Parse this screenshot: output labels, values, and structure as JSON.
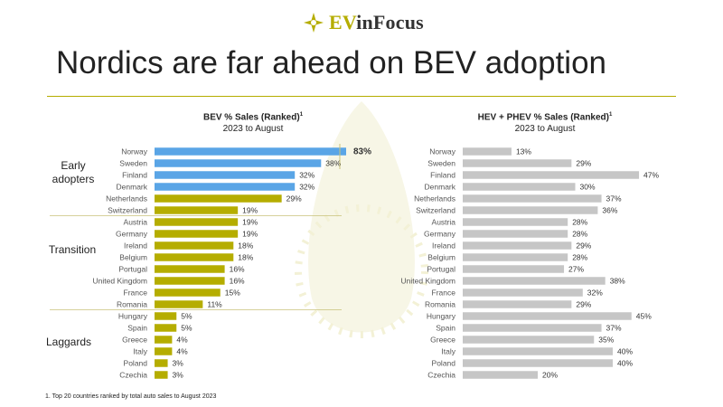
{
  "logo": {
    "ev": "EV",
    "rest": "inFocus"
  },
  "title": "Nordics are far ahead on BEV adoption",
  "footnote": "1. Top 20 countries ranked by total auto sales to August 2023",
  "groups": {
    "early": [
      "Early",
      "adopters"
    ],
    "transition": "Transition",
    "laggards": "Laggards"
  },
  "colors": {
    "accent": "#b5ad00",
    "nordic_blue": "#5aa5e6",
    "gray": "#c6c6c6",
    "rule": "#b5ad00"
  },
  "chart_data": [
    {
      "type": "bar",
      "orientation": "horizontal",
      "title": "BEV % Sales (Ranked)",
      "title_sup": "1",
      "subtitle": "2023 to August",
      "categories": [
        "Norway",
        "Sweden",
        "Finland",
        "Denmark",
        "Netherlands",
        "Switzerland",
        "Austria",
        "Germany",
        "Ireland",
        "Belgium",
        "Portugal",
        "United Kingdom",
        "France",
        "Romania",
        "Hungary",
        "Spain",
        "Greece",
        "Italy",
        "Poland",
        "Czechia"
      ],
      "values": [
        83,
        38,
        32,
        32,
        29,
        19,
        19,
        19,
        18,
        18,
        16,
        16,
        15,
        11,
        5,
        5,
        4,
        4,
        3,
        3
      ],
      "value_labels": [
        "83%",
        "38%",
        "32%",
        "32%",
        "29%",
        "19%",
        "19%",
        "19%",
        "18%",
        "18%",
        "16%",
        "16%",
        "15%",
        "11%",
        "5%",
        "5%",
        "4%",
        "4%",
        "3%",
        "3%"
      ],
      "colors": [
        "#5aa5e6",
        "#5aa5e6",
        "#5aa5e6",
        "#5aa5e6",
        "#b5ad00",
        "#b5ad00",
        "#b5ad00",
        "#b5ad00",
        "#b5ad00",
        "#b5ad00",
        "#b5ad00",
        "#b5ad00",
        "#b5ad00",
        "#b5ad00",
        "#b5ad00",
        "#b5ad00",
        "#b5ad00",
        "#b5ad00",
        "#b5ad00",
        "#b5ad00"
      ],
      "axis_break": true
    },
    {
      "type": "bar",
      "orientation": "horizontal",
      "title": "HEV + PHEV % Sales (Ranked)",
      "title_sup": "1",
      "subtitle": "2023 to August",
      "categories": [
        "Norway",
        "Sweden",
        "Finland",
        "Denmark",
        "Netherlands",
        "Switzerland",
        "Austria",
        "Germany",
        "Ireland",
        "Belgium",
        "Portugal",
        "United Kingdom",
        "France",
        "Romania",
        "Hungary",
        "Spain",
        "Greece",
        "Italy",
        "Poland",
        "Czechia"
      ],
      "values": [
        13,
        29,
        47,
        30,
        37,
        36,
        28,
        28,
        29,
        28,
        27,
        38,
        32,
        29,
        45,
        37,
        35,
        40,
        40,
        20
      ],
      "value_labels": [
        "13%",
        "29%",
        "47%",
        "30%",
        "37%",
        "36%",
        "28%",
        "28%",
        "29%",
        "28%",
        "27%",
        "38%",
        "32%",
        "29%",
        "45%",
        "37%",
        "35%",
        "40%",
        "40%",
        "20%"
      ],
      "color": "#c6c6c6"
    }
  ]
}
